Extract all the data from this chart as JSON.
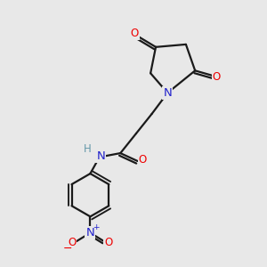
{
  "bg_color": "#e8e8e8",
  "bond_color": "#1a1a1a",
  "bond_width": 1.6,
  "atom_colors": {
    "O": "#ee0000",
    "N": "#2222cc",
    "C": "#1a1a1a",
    "H": "#6699aa"
  },
  "font_size": 8.5,
  "fig_size": [
    3.0,
    3.0
  ],
  "dpi": 100
}
